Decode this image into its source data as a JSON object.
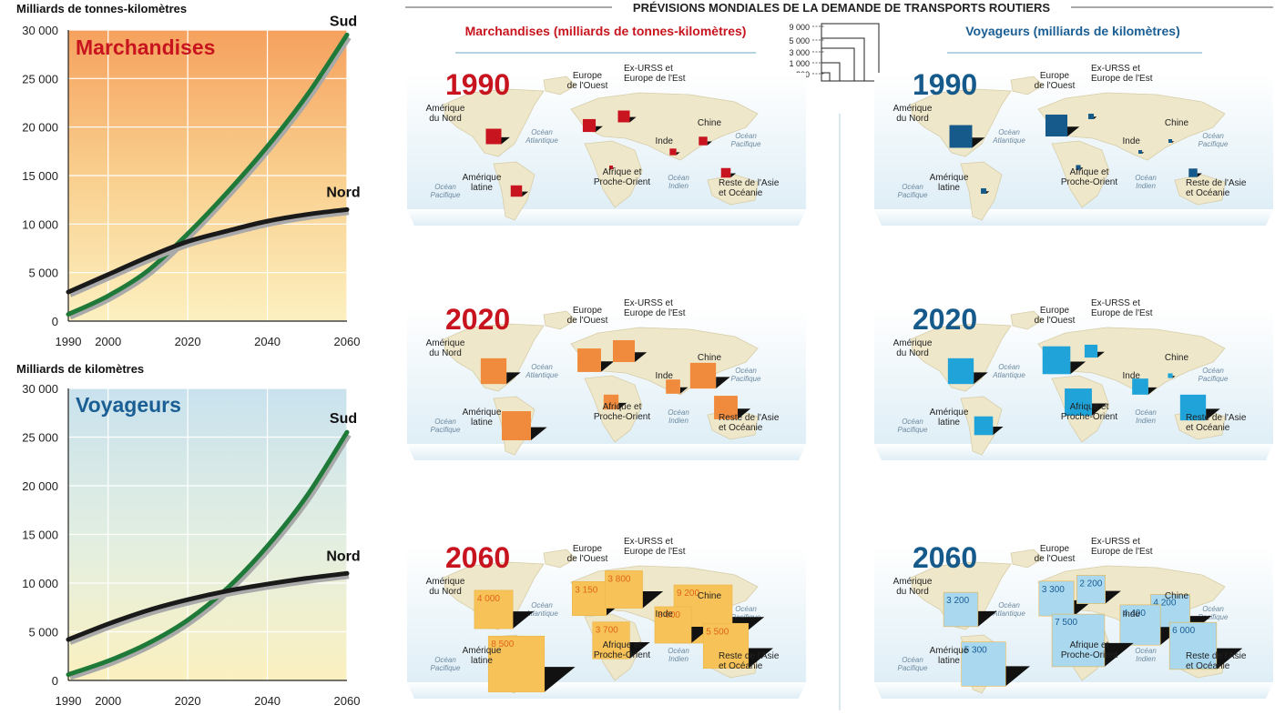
{
  "main_title": "PRÉVISIONS MONDIALES DE LA DEMANDE DE TRANSPORTS ROUTIERS",
  "colors": {
    "sud": "#1f7a3a",
    "nord": "#1a1a1a",
    "freight_red": "#c8141e",
    "freight_orange": "#f08a3c",
    "freight_yellow": "#f7c257",
    "pass_dark": "#155a8a",
    "pass_mid": "#1fa3d8",
    "pass_light": "#a9d8ef",
    "map_land": "#efe7c9",
    "map_sea": "#eaf3f8",
    "title_red": "#c8141e",
    "title_blue": "#1a5e94"
  },
  "freight_header": "Marchandises (milliards de tonnes-kilomètres)",
  "passenger_header": "Voyageurs (milliards de kilomètres)",
  "scale_legend": [
    "9 000",
    "5 000",
    "3 000",
    "1 000",
    "200"
  ],
  "ocean_labels": {
    "atlantique": [
      "Océan",
      "Atlantique"
    ],
    "pacifique": [
      "Océan",
      "Pacifique"
    ],
    "indien": [
      "Océan",
      "Indien"
    ]
  },
  "chart_data": [
    {
      "type": "line",
      "ylabel": "Milliards de tonnes-kilomètres",
      "title": "Marchandises",
      "x_ticks": [
        "1990",
        "2000",
        "2020",
        "2040",
        "2060"
      ],
      "y_ticks": [
        "0",
        "5 000",
        "10 000",
        "15 000",
        "20 000",
        "25 000",
        "30 000"
      ],
      "xlim": [
        1990,
        2060
      ],
      "ylim": [
        0,
        30000
      ],
      "grid": true,
      "x": [
        1990,
        2000,
        2010,
        2020,
        2030,
        2040,
        2050,
        2060
      ],
      "series": [
        {
          "name": "Sud",
          "values": [
            700,
            2600,
            5200,
            9000,
            13300,
            18000,
            23300,
            29500
          ]
        },
        {
          "name": "Nord",
          "values": [
            3000,
            4800,
            6600,
            8200,
            9300,
            10300,
            11000,
            11500
          ]
        }
      ]
    },
    {
      "type": "line",
      "ylabel": "Milliards de kilomètres",
      "title": "Voyageurs",
      "x_ticks": [
        "1990",
        "2000",
        "2020",
        "2040",
        "2060"
      ],
      "y_ticks": [
        "0",
        "5 000",
        "10 000",
        "15 000",
        "20 000",
        "25 000",
        "30 000"
      ],
      "xlim": [
        1990,
        2060
      ],
      "ylim": [
        0,
        30000
      ],
      "grid": true,
      "x": [
        1990,
        2000,
        2010,
        2020,
        2030,
        2040,
        2050,
        2060
      ],
      "series": [
        {
          "name": "Sud",
          "values": [
            600,
            2000,
            3800,
            6200,
            9500,
            13800,
            19000,
            25500
          ]
        },
        {
          "name": "Nord",
          "values": [
            4200,
            5800,
            7200,
            8300,
            9200,
            9900,
            10500,
            11000
          ]
        }
      ]
    },
    {
      "type": "bubble-map",
      "metric": "Marchandises",
      "years": [
        {
          "year": "1990",
          "regions": [
            {
              "name": "Amérique du Nord",
              "value": 650
            },
            {
              "name": "Europe de l'Ouest",
              "value": 450
            },
            {
              "name": "Ex-URSS et Europe de l'Est",
              "value": 380
            },
            {
              "name": "Chine",
              "value": 200
            },
            {
              "name": "Inde",
              "value": 120
            },
            {
              "name": "Afrique et Proche-Orient",
              "value": 35
            },
            {
              "name": "Amérique latine",
              "value": 350
            },
            {
              "name": "Reste de l'Asie et Océanie",
              "value": 250
            }
          ]
        },
        {
          "year": "2020",
          "regions": [
            {
              "name": "Amérique du Nord",
              "value": 1800
            },
            {
              "name": "Europe de l'Ouest",
              "value": 1500
            },
            {
              "name": "Ex-URSS et Europe de l'Est",
              "value": 1300
            },
            {
              "name": "Chine",
              "value": 1800
            },
            {
              "name": "Inde",
              "value": 550
            },
            {
              "name": "Afrique et Proche-Orient",
              "value": 600
            },
            {
              "name": "Amérique latine",
              "value": 2300
            },
            {
              "name": "Reste de l'Asie et Océanie",
              "value": 1500
            }
          ]
        },
        {
          "year": "2060",
          "regions": [
            {
              "name": "Amérique du Nord",
              "value": 4000,
              "label": "4 000"
            },
            {
              "name": "Europe de l'Ouest",
              "value": 3150,
              "label": "3 150"
            },
            {
              "name": "Ex-URSS et Europe de l'Est",
              "value": 3800,
              "label": "3 800"
            },
            {
              "name": "Chine",
              "value": 9200,
              "label": "9 200"
            },
            {
              "name": "Inde",
              "value": 3600,
              "label": "3 600"
            },
            {
              "name": "Afrique et Proche-Orient",
              "value": 3700,
              "label": "3 700"
            },
            {
              "name": "Amérique latine",
              "value": 8500,
              "label": "8 500"
            },
            {
              "name": "Reste de l'Asie et Océanie",
              "value": 5500,
              "label": "5 500"
            }
          ]
        }
      ]
    },
    {
      "type": "bubble-map",
      "metric": "Voyageurs",
      "years": [
        {
          "year": "1990",
          "regions": [
            {
              "name": "Amérique du Nord",
              "value": 1400
            },
            {
              "name": "Europe de l'Ouest",
              "value": 1300
            },
            {
              "name": "Ex-URSS et Europe de l'Est",
              "value": 80
            },
            {
              "name": "Chine",
              "value": 15
            },
            {
              "name": "Inde",
              "value": 15
            },
            {
              "name": "Afrique et Proche-Orient",
              "value": 60
            },
            {
              "name": "Amérique latine",
              "value": 80
            },
            {
              "name": "Reste de l'Asie et Océanie",
              "value": 200
            }
          ]
        },
        {
          "year": "2020",
          "regions": [
            {
              "name": "Amérique du Nord",
              "value": 1800
            },
            {
              "name": "Europe de l'Ouest",
              "value": 2100
            },
            {
              "name": "Ex-URSS et Europe de l'Est",
              "value": 450
            },
            {
              "name": "Chine",
              "value": 60
            },
            {
              "name": "Inde",
              "value": 700
            },
            {
              "name": "Afrique et Proche-Orient",
              "value": 2000
            },
            {
              "name": "Amérique latine",
              "value": 950
            },
            {
              "name": "Reste de l'Asie et Océanie",
              "value": 1800
            }
          ]
        },
        {
          "year": "2060",
          "regions": [
            {
              "name": "Amérique du Nord",
              "value": 3200,
              "label": "3 200"
            },
            {
              "name": "Europe de l'Ouest",
              "value": 3300,
              "label": "3 300"
            },
            {
              "name": "Ex-URSS et Europe de l'Est",
              "value": 2200,
              "label": "2 200"
            },
            {
              "name": "Chine",
              "value": 4200,
              "label": "4 200"
            },
            {
              "name": "Inde",
              "value": 4400,
              "label": "4 400"
            },
            {
              "name": "Afrique et Proche-Orient",
              "value": 7500,
              "label": "7 500"
            },
            {
              "name": "Amérique latine",
              "value": 5300,
              "label": "5 300"
            },
            {
              "name": "Reste de l'Asie et Océanie",
              "value": 6000,
              "label": "6 000"
            }
          ]
        }
      ]
    }
  ]
}
